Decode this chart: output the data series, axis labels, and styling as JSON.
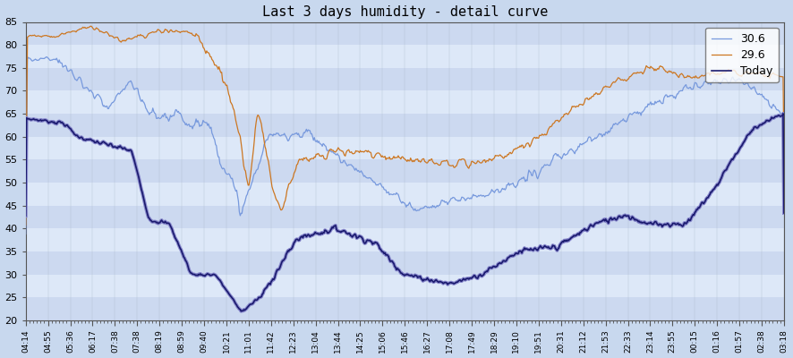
{
  "title": "Last 3 days humidity - detail curve",
  "background_color": "#c8d8ee",
  "plot_bg_outer": "#c8d8ee",
  "stripe_colors": [
    "#ccd9f0",
    "#dde8f8"
  ],
  "ylim": [
    20,
    85
  ],
  "yticks": [
    20,
    25,
    30,
    35,
    40,
    45,
    50,
    55,
    60,
    65,
    70,
    75,
    80,
    85
  ],
  "legend_labels": [
    "Today",
    "30.6",
    "29.6"
  ],
  "line_colors": {
    "today_dark": "#1a1a6e",
    "today_light": "#8888cc",
    "day30": "#7799dd",
    "day29": "#cc7722"
  },
  "x_tick_labels": [
    "04:14",
    "04:55",
    "05:36",
    "06:17",
    "07:38",
    "07:38",
    "08:19",
    "08:59",
    "09:40",
    "10:21",
    "11:01",
    "11:42",
    "12:23",
    "13:04",
    "13:44",
    "14:25",
    "15:06",
    "15:46",
    "16:27",
    "17:08",
    "17:49",
    "18:29",
    "19:10",
    "19:51",
    "20:31",
    "21:12",
    "21:53",
    "22:33",
    "23:14",
    "23:55",
    "00:15",
    "01:16",
    "01:57",
    "02:38",
    "03:18"
  ]
}
